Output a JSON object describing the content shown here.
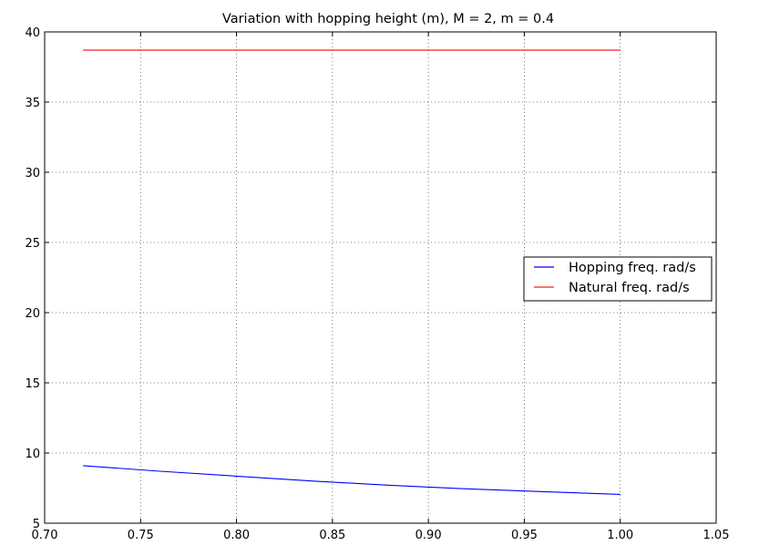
{
  "chart_data": {
    "type": "line",
    "title": "Variation with hopping height (m), M = 2, m = 0.4",
    "xlabel": "",
    "ylabel": "",
    "xlim": [
      0.7,
      1.05
    ],
    "ylim": [
      5,
      40
    ],
    "x_ticks": [
      "0.70",
      "0.75",
      "0.80",
      "0.85",
      "0.90",
      "0.95",
      "1.00",
      "1.05"
    ],
    "y_ticks": [
      "5",
      "10",
      "15",
      "20",
      "25",
      "30",
      "35",
      "40"
    ],
    "grid": true,
    "legend_position": "center-right",
    "series": [
      {
        "name": "Hopping freq. rad/s",
        "color": "#0000ff",
        "x": [
          0.72,
          0.76,
          0.8,
          0.84,
          0.88,
          0.92,
          0.96,
          1.0
        ],
        "y": [
          9.1,
          8.7,
          8.35,
          8.0,
          7.7,
          7.45,
          7.25,
          7.05
        ]
      },
      {
        "name": "Natural freq. rad/s",
        "color": "#ff4444",
        "x": [
          0.72,
          1.0
        ],
        "y": [
          38.7,
          38.7
        ]
      }
    ]
  }
}
